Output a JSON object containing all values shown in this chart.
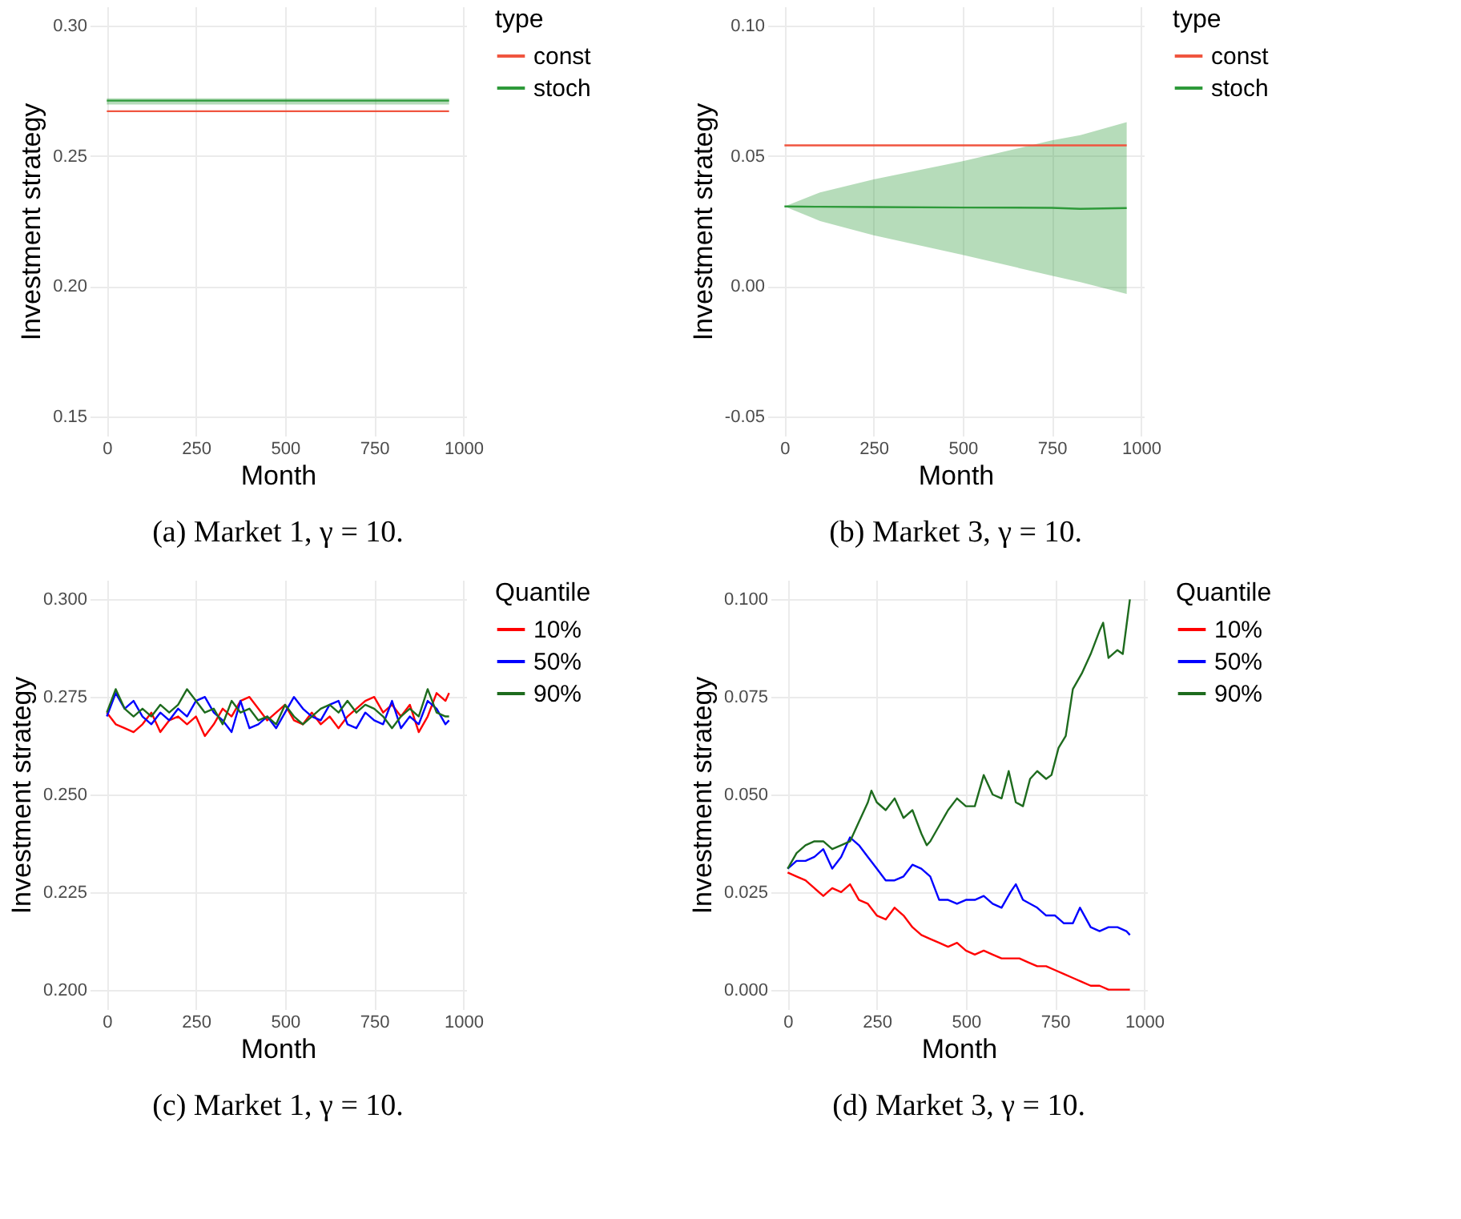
{
  "chart_data": [
    {
      "type": "line",
      "title": "(a) Market 1, γ = 10.",
      "xlabel": "Month",
      "ylabel": "Investment strategy",
      "legend_title": "type",
      "legend": "right",
      "grid": true,
      "xlim": [
        -48,
        1008
      ],
      "xticks": [
        0,
        250,
        500,
        750,
        1000
      ],
      "ylim": [
        0.1425,
        0.3075
      ],
      "yticks": [
        {
          "value": 0.15,
          "label": "0.15"
        },
        {
          "value": 0.2,
          "label": "0.20"
        },
        {
          "value": 0.25,
          "label": "0.25"
        },
        {
          "value": 0.3,
          "label": "0.30"
        }
      ],
      "x": [
        0,
        250,
        500,
        750,
        960
      ],
      "series": [
        {
          "name": "const",
          "color": "#f0553f",
          "values": [
            0.2672,
            0.2672,
            0.2672,
            0.2672,
            0.2672
          ]
        },
        {
          "name": "stoch",
          "color": "#2e9a3a",
          "values": [
            0.2713,
            0.2713,
            0.2713,
            0.2713,
            0.2713
          ],
          "lower": [
            0.2698,
            0.2698,
            0.2698,
            0.2698,
            0.2698
          ],
          "upper": [
            0.2722,
            0.2722,
            0.2722,
            0.2722,
            0.2722
          ]
        }
      ]
    },
    {
      "type": "line",
      "title": "(b) Market 3, γ = 10.",
      "xlabel": "Month",
      "ylabel": "Investment strategy",
      "legend_title": "type",
      "legend": "right",
      "grid": true,
      "xlim": [
        -48,
        1008
      ],
      "xticks": [
        0,
        250,
        500,
        750,
        1000
      ],
      "ylim": [
        -0.0575,
        0.1075
      ],
      "yticks": [
        {
          "value": -0.05,
          "label": "-0.05"
        },
        {
          "value": 0,
          "label": "0.00"
        },
        {
          "value": 0.05,
          "label": "0.05"
        },
        {
          "value": 0.1,
          "label": "0.10"
        }
      ],
      "x": [
        0,
        100,
        250,
        500,
        750,
        830,
        960
      ],
      "series": [
        {
          "name": "const",
          "color": "#f0553f",
          "values": [
            0.0541,
            0.0541,
            0.0541,
            0.0541,
            0.0541,
            0.0541,
            0.0541
          ]
        },
        {
          "name": "stoch",
          "color": "#2e9a3a",
          "values": [
            0.0306,
            0.0305,
            0.0304,
            0.0302,
            0.0301,
            0.0297,
            0.03
          ],
          "lower": [
            0.0306,
            0.025,
            0.0195,
            0.012,
            0.004,
            0.0015,
            -0.003
          ],
          "upper": [
            0.0306,
            0.036,
            0.041,
            0.048,
            0.056,
            0.058,
            0.063
          ]
        }
      ]
    },
    {
      "type": "line",
      "title": "(c) Market 1, γ = 10.",
      "xlabel": "Month",
      "ylabel": "Investment strategy",
      "legend_title": "Quantile",
      "legend": "right",
      "grid": true,
      "xlim": [
        -48,
        1008
      ],
      "xticks": [
        0,
        250,
        500,
        750,
        1000
      ],
      "ylim": [
        0.195,
        0.305
      ],
      "yticks": [
        {
          "value": 0.2,
          "label": "0.200"
        },
        {
          "value": 0.225,
          "label": "0.225"
        },
        {
          "value": 0.25,
          "label": "0.250"
        },
        {
          "value": 0.275,
          "label": "0.275"
        },
        {
          "value": 0.3,
          "label": "0.300"
        }
      ],
      "x": [
        0,
        25,
        50,
        75,
        100,
        125,
        150,
        175,
        200,
        225,
        250,
        275,
        300,
        325,
        350,
        375,
        400,
        425,
        450,
        475,
        500,
        525,
        550,
        575,
        600,
        625,
        650,
        675,
        700,
        725,
        750,
        775,
        800,
        825,
        850,
        875,
        900,
        925,
        950,
        960
      ],
      "series": [
        {
          "name": "10%",
          "color": "#ff0000",
          "values": [
            0.271,
            0.268,
            0.267,
            0.266,
            0.268,
            0.271,
            0.266,
            0.269,
            0.27,
            0.268,
            0.27,
            0.265,
            0.268,
            0.272,
            0.27,
            0.274,
            0.275,
            0.272,
            0.269,
            0.271,
            0.273,
            0.269,
            0.268,
            0.271,
            0.268,
            0.27,
            0.267,
            0.27,
            0.272,
            0.274,
            0.275,
            0.271,
            0.273,
            0.27,
            0.273,
            0.266,
            0.27,
            0.276,
            0.274,
            0.276
          ]
        },
        {
          "name": "50%",
          "color": "#0000ff",
          "values": [
            0.27,
            0.276,
            0.272,
            0.274,
            0.27,
            0.268,
            0.271,
            0.269,
            0.272,
            0.27,
            0.274,
            0.275,
            0.271,
            0.269,
            0.266,
            0.274,
            0.267,
            0.268,
            0.27,
            0.267,
            0.271,
            0.275,
            0.272,
            0.27,
            0.269,
            0.273,
            0.274,
            0.268,
            0.267,
            0.271,
            0.269,
            0.268,
            0.274,
            0.267,
            0.27,
            0.268,
            0.274,
            0.272,
            0.268,
            0.269
          ]
        },
        {
          "name": "90%",
          "color": "#1e6b1e",
          "values": [
            0.271,
            0.277,
            0.272,
            0.27,
            0.272,
            0.27,
            0.273,
            0.271,
            0.273,
            0.277,
            0.274,
            0.271,
            0.272,
            0.268,
            0.274,
            0.271,
            0.272,
            0.269,
            0.27,
            0.268,
            0.273,
            0.27,
            0.268,
            0.27,
            0.272,
            0.273,
            0.271,
            0.274,
            0.271,
            0.273,
            0.272,
            0.27,
            0.267,
            0.27,
            0.272,
            0.27,
            0.277,
            0.271,
            0.27,
            0.27
          ]
        }
      ]
    },
    {
      "type": "line",
      "title": "(d) Market 3, γ = 10.",
      "xlabel": "Month",
      "ylabel": "Investment strategy",
      "legend_title": "Quantile",
      "legend": "right",
      "grid": true,
      "xlim": [
        -48,
        1008
      ],
      "xticks": [
        0,
        250,
        500,
        750,
        1000
      ],
      "ylim": [
        -0.005,
        0.105
      ],
      "yticks": [
        {
          "value": 0,
          "label": "0.000"
        },
        {
          "value": 0.025,
          "label": "0.025"
        },
        {
          "value": 0.05,
          "label": "0.050"
        },
        {
          "value": 0.075,
          "label": "0.075"
        },
        {
          "value": 0.1,
          "label": "0.100"
        }
      ],
      "series": [
        {
          "name": "10%",
          "color": "#ff0000",
          "x": [
            0,
            25,
            50,
            75,
            100,
            125,
            150,
            175,
            200,
            225,
            250,
            275,
            300,
            325,
            350,
            375,
            400,
            425,
            450,
            475,
            500,
            525,
            550,
            575,
            600,
            625,
            650,
            675,
            700,
            725,
            750,
            775,
            800,
            825,
            850,
            875,
            900,
            925,
            960
          ],
          "values": [
            0.03,
            0.029,
            0.028,
            0.026,
            0.024,
            0.026,
            0.025,
            0.027,
            0.023,
            0.022,
            0.019,
            0.018,
            0.021,
            0.019,
            0.016,
            0.014,
            0.013,
            0.012,
            0.011,
            0.012,
            0.01,
            0.009,
            0.01,
            0.009,
            0.008,
            0.008,
            0.008,
            0.007,
            0.006,
            0.006,
            0.005,
            0.004,
            0.003,
            0.002,
            0.001,
            0.001,
            0.0,
            0.0,
            0.0
          ]
        },
        {
          "name": "50%",
          "color": "#0000ff",
          "x": [
            0,
            25,
            50,
            75,
            100,
            125,
            150,
            175,
            200,
            225,
            250,
            275,
            300,
            325,
            350,
            375,
            400,
            425,
            450,
            475,
            500,
            525,
            550,
            575,
            600,
            625,
            640,
            660,
            700,
            725,
            750,
            775,
            800,
            820,
            850,
            875,
            900,
            925,
            950,
            960
          ],
          "values": [
            0.031,
            0.033,
            0.033,
            0.034,
            0.036,
            0.031,
            0.034,
            0.039,
            0.037,
            0.034,
            0.031,
            0.028,
            0.028,
            0.029,
            0.032,
            0.031,
            0.029,
            0.023,
            0.023,
            0.022,
            0.023,
            0.023,
            0.024,
            0.022,
            0.021,
            0.025,
            0.027,
            0.023,
            0.021,
            0.019,
            0.019,
            0.017,
            0.017,
            0.021,
            0.016,
            0.015,
            0.016,
            0.016,
            0.015,
            0.014
          ]
        },
        {
          "name": "90%",
          "color": "#1e6b1e",
          "x": [
            0,
            25,
            50,
            75,
            100,
            125,
            150,
            175,
            200,
            225,
            235,
            250,
            275,
            300,
            325,
            350,
            375,
            390,
            400,
            425,
            450,
            475,
            500,
            525,
            550,
            575,
            600,
            620,
            640,
            660,
            680,
            700,
            725,
            740,
            760,
            780,
            800,
            825,
            850,
            875,
            885,
            900,
            925,
            940,
            950,
            960
          ],
          "values": [
            0.031,
            0.035,
            0.037,
            0.038,
            0.038,
            0.036,
            0.037,
            0.038,
            0.043,
            0.048,
            0.051,
            0.048,
            0.046,
            0.049,
            0.044,
            0.046,
            0.04,
            0.037,
            0.038,
            0.042,
            0.046,
            0.049,
            0.047,
            0.047,
            0.055,
            0.05,
            0.049,
            0.056,
            0.048,
            0.047,
            0.054,
            0.056,
            0.054,
            0.055,
            0.062,
            0.065,
            0.077,
            0.081,
            0.086,
            0.092,
            0.094,
            0.085,
            0.087,
            0.086,
            0.093,
            0.1
          ]
        }
      ]
    }
  ]
}
